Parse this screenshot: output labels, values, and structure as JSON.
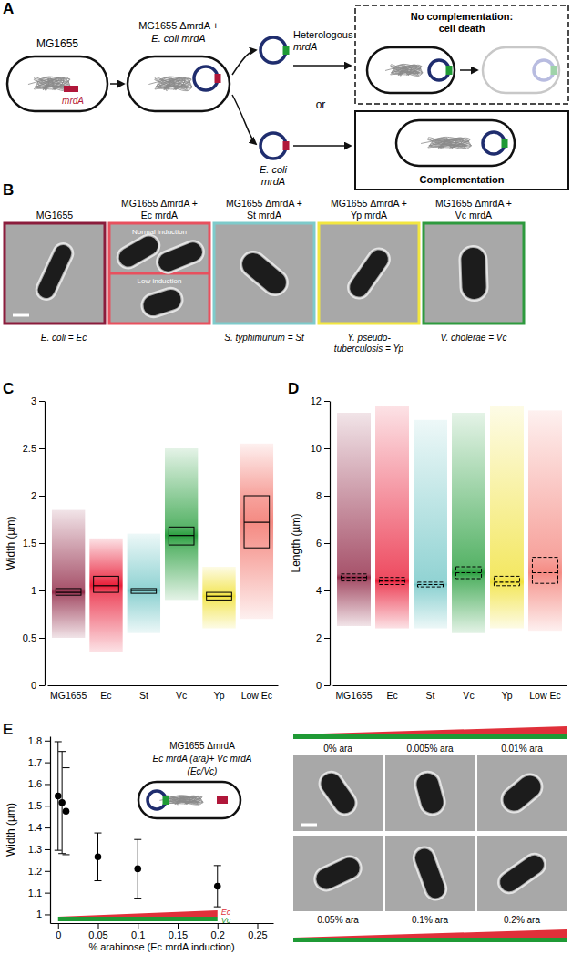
{
  "panel_labels": [
    "A",
    "B",
    "C",
    "D",
    "E"
  ],
  "diagram": {
    "wild_type": "MG1655",
    "gene": "mrdA",
    "strain": [
      "MG1655 ΔmrdA +",
      "E. coli mrdA"
    ],
    "heterologous": [
      "Heterologous",
      "mrdA"
    ],
    "native": [
      "E. coli",
      "mrdA"
    ],
    "or": "or",
    "no_complementation": [
      "No complementation:",
      "cell death"
    ],
    "complementation": "Complementation"
  },
  "micrographs": {
    "titles": [
      [
        "MG1655"
      ],
      [
        "MG1655 ΔmrdA +",
        "Ec mrdA"
      ],
      [
        "MG1655 ΔmrdA +",
        "St mrdA"
      ],
      [
        "MG1655 ΔmrdA +",
        "Yp mrdA"
      ],
      [
        "MG1655 ΔmrdA +",
        "Vc mrdA"
      ]
    ],
    "colors": [
      "#8b1c3c",
      "#e8505e",
      "#7ecbcb",
      "#f2e640",
      "#2e9a3e"
    ],
    "induction": [
      "Normal induction",
      "Low induction"
    ],
    "abbreviations": [
      [
        "E. coli = Ec"
      ],
      [
        "S. typhimurium = St"
      ],
      [
        "Y. pseudo-",
        "tuberculosis = Yp"
      ],
      [
        "V. cholerae = Vc"
      ]
    ]
  },
  "chart_data": [
    {
      "type": "box",
      "y_label": "Width (µm)",
      "categories": [
        "MG1655",
        "Ec",
        "St",
        "Vc",
        "Yp",
        "Low Ec"
      ],
      "colors": [
        "#8b1c3c",
        "#e8112d",
        "#6cc4c4",
        "#1f9a35",
        "#f0e030",
        "#f4847c"
      ],
      "min": [
        0.5,
        0.35,
        0.55,
        0.9,
        0.6,
        0.7
      ],
      "q1": [
        0.95,
        0.98,
        0.97,
        1.48,
        0.9,
        1.45
      ],
      "median": [
        0.98,
        1.05,
        1.0,
        1.58,
        0.94,
        1.72
      ],
      "q3": [
        1.02,
        1.15,
        1.02,
        1.67,
        0.98,
        2.0
      ],
      "max": [
        1.85,
        1.55,
        1.6,
        2.5,
        1.25,
        2.55
      ],
      "ylim": [
        0,
        3
      ],
      "yticks": [
        0,
        0.5,
        1,
        1.5,
        2,
        2.5,
        3
      ],
      "line_style": "solid"
    },
    {
      "type": "box",
      "y_label": "Length (µm)",
      "categories": [
        "MG1655",
        "Ec",
        "St",
        "Vc",
        "Yp",
        "Low Ec"
      ],
      "colors": [
        "#8b1c3c",
        "#e8112d",
        "#6cc4c4",
        "#1f9a35",
        "#f0e030",
        "#f4847c"
      ],
      "min": [
        2.5,
        2.4,
        2.4,
        2.2,
        2.4,
        2.3
      ],
      "q1": [
        4.4,
        4.25,
        4.15,
        4.5,
        4.2,
        4.3
      ],
      "median": [
        4.55,
        4.4,
        4.25,
        4.75,
        4.35,
        4.75
      ],
      "q3": [
        4.7,
        4.55,
        4.35,
        5.0,
        4.6,
        5.4
      ],
      "max": [
        11.5,
        11.8,
        11.2,
        11.5,
        11.8,
        11.6
      ],
      "ylim": [
        0,
        12
      ],
      "yticks": [
        0,
        2,
        4,
        6,
        8,
        10,
        12
      ],
      "line_style": "dashed"
    },
    {
      "type": "scatter",
      "y_label": "Width (µm)",
      "x_label": "% arabinose (Ec mrdA induction)",
      "x": [
        0,
        0.005,
        0.01,
        0.05,
        0.1,
        0.2
      ],
      "values": [
        1.545,
        1.515,
        1.475,
        1.265,
        1.21,
        1.13
      ],
      "errors": [
        0.25,
        0.235,
        0.2,
        0.11,
        0.135,
        0.095
      ],
      "color": "#000000",
      "marker": "circle",
      "xlim": [
        -0.01,
        0.27
      ],
      "xticks": [
        0,
        0.05,
        0.1,
        0.15,
        0.2,
        0.25
      ],
      "ylim": [
        0.96,
        1.82
      ],
      "yticks": [
        1,
        1.1,
        1.2,
        1.3,
        1.4,
        1.5,
        1.6,
        1.7,
        1.8
      ],
      "annotations": [
        "MG1655 ΔmrdA",
        "Ec mrdA (ara)+ Vc mrdA",
        "(Ec/Vc)",
        "Ec",
        "Vc"
      ]
    }
  ],
  "arabinose_micrographs": {
    "labels": [
      "0% ara",
      "0.005% ara",
      "0.01% ara",
      "0.05% ara",
      "0.1% ara",
      "0.2% ara"
    ]
  }
}
